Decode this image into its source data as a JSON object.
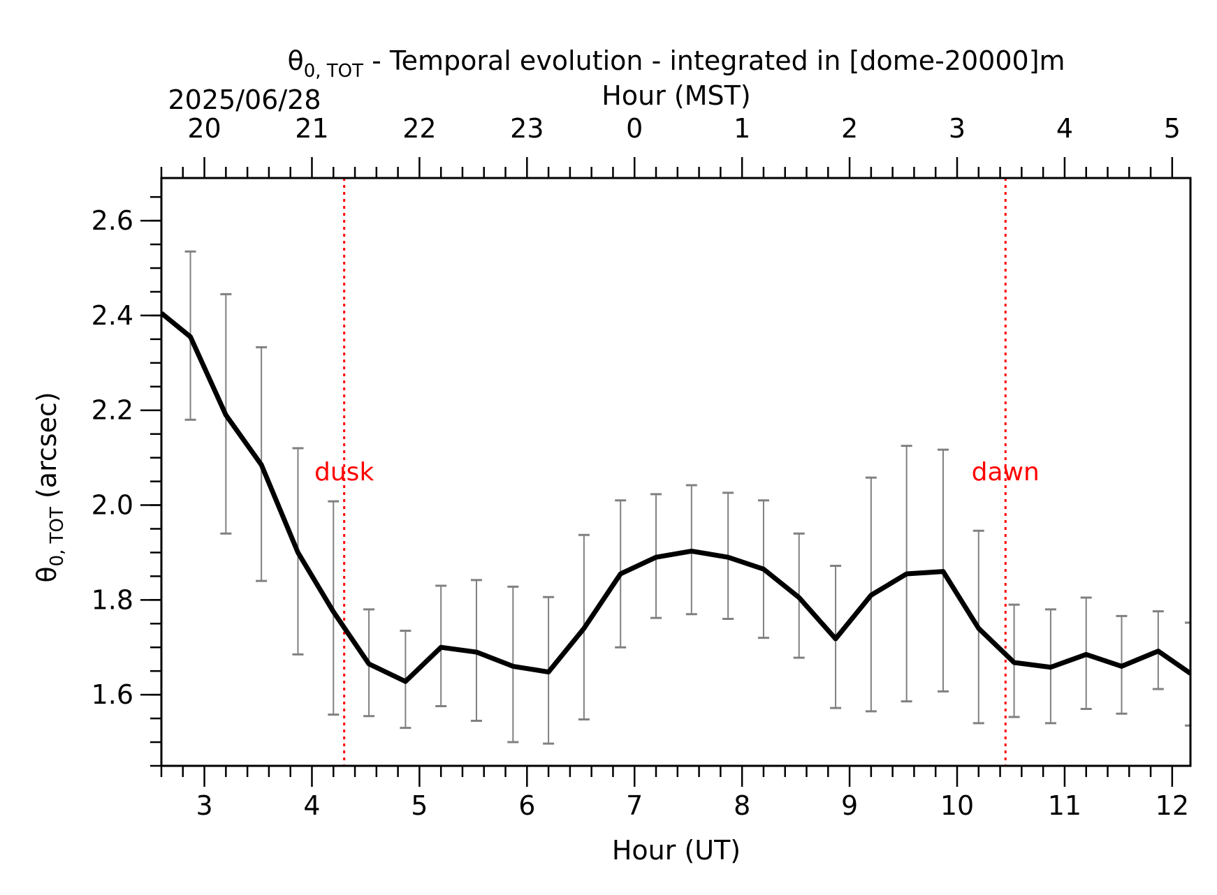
{
  "title_symbol": "θ",
  "title_sub": "0, TOT",
  "title_rest": " - Temporal evolution - integrated in [dome-20000]m",
  "date_label": "2025/06/28",
  "top_axis_label": "Hour (MST)",
  "bottom_axis_label": "Hour (UT)",
  "y_symbol": "θ",
  "y_sub": "0, TOT",
  "y_rest": " (arcsec)",
  "colors": {
    "line": "#000000",
    "errorbar": "#808080",
    "marker": "#ff0000",
    "axis": "#000000"
  },
  "chart_data": {
    "type": "line",
    "title": "θ0,TOT - Temporal evolution - integrated in [dome-20000]m",
    "xlabel": "Hour (UT)",
    "ylabel": "θ0,TOT (arcsec)",
    "top_xlabel": "Hour (MST)",
    "xlim": [
      2.6,
      12.17
    ],
    "ylim": [
      1.45,
      2.69
    ],
    "x_ticks": [
      3,
      4,
      5,
      6,
      7,
      8,
      9,
      10,
      11,
      12
    ],
    "x_tick_labels": [
      "3",
      "4",
      "5",
      "6",
      "7",
      "8",
      "9",
      "10",
      "11",
      "12"
    ],
    "top_ticks": [
      3,
      4,
      5,
      6,
      7,
      8,
      9,
      10,
      11,
      12
    ],
    "top_tick_labels": [
      "20",
      "21",
      "22",
      "23",
      "0",
      "1",
      "2",
      "3",
      "4",
      "5"
    ],
    "y_ticks": [
      1.6,
      1.8,
      2.0,
      2.2,
      2.4,
      2.6
    ],
    "y_tick_labels": [
      "1.6",
      "1.8",
      "2.0",
      "2.2",
      "2.4",
      "2.6"
    ],
    "series": [
      {
        "x": [
          2.6,
          2.87,
          3.2,
          3.53,
          3.87,
          4.2,
          4.53,
          4.87,
          5.2,
          5.53,
          5.87,
          6.2,
          6.53,
          6.87,
          7.2,
          7.53,
          7.87,
          8.2,
          8.53,
          8.87,
          9.2,
          9.53,
          9.87,
          10.2,
          10.53,
          10.87,
          11.2,
          11.53,
          11.87,
          12.17
        ],
        "y": [
          2.405,
          2.355,
          2.19,
          2.085,
          1.9,
          1.775,
          1.665,
          1.628,
          1.7,
          1.69,
          1.66,
          1.648,
          1.74,
          1.855,
          1.89,
          1.903,
          1.89,
          1.865,
          1.805,
          1.718,
          1.81,
          1.855,
          1.86,
          1.74,
          1.668,
          1.658,
          1.685,
          1.66,
          1.692,
          1.645
        ],
        "err_low": [
          null,
          2.18,
          1.94,
          1.84,
          1.685,
          1.558,
          1.555,
          1.53,
          1.576,
          1.545,
          1.5,
          1.497,
          1.548,
          1.7,
          1.762,
          1.77,
          1.76,
          1.72,
          1.678,
          1.572,
          1.565,
          1.586,
          1.607,
          1.54,
          1.553,
          1.54,
          1.57,
          1.56,
          1.612,
          1.535
        ],
        "err_high": [
          null,
          2.535,
          2.445,
          2.333,
          2.12,
          2.008,
          1.78,
          1.735,
          1.83,
          1.842,
          1.828,
          1.806,
          1.937,
          2.01,
          2.023,
          2.042,
          2.026,
          2.01,
          1.94,
          1.872,
          2.058,
          2.125,
          2.117,
          1.946,
          1.79,
          1.78,
          1.805,
          1.766,
          1.776,
          1.752
        ]
      }
    ],
    "annotations": [
      {
        "x": 4.3,
        "label": "dusk"
      },
      {
        "x": 10.45,
        "label": "dawn"
      }
    ],
    "grid": false,
    "legend": "none"
  }
}
